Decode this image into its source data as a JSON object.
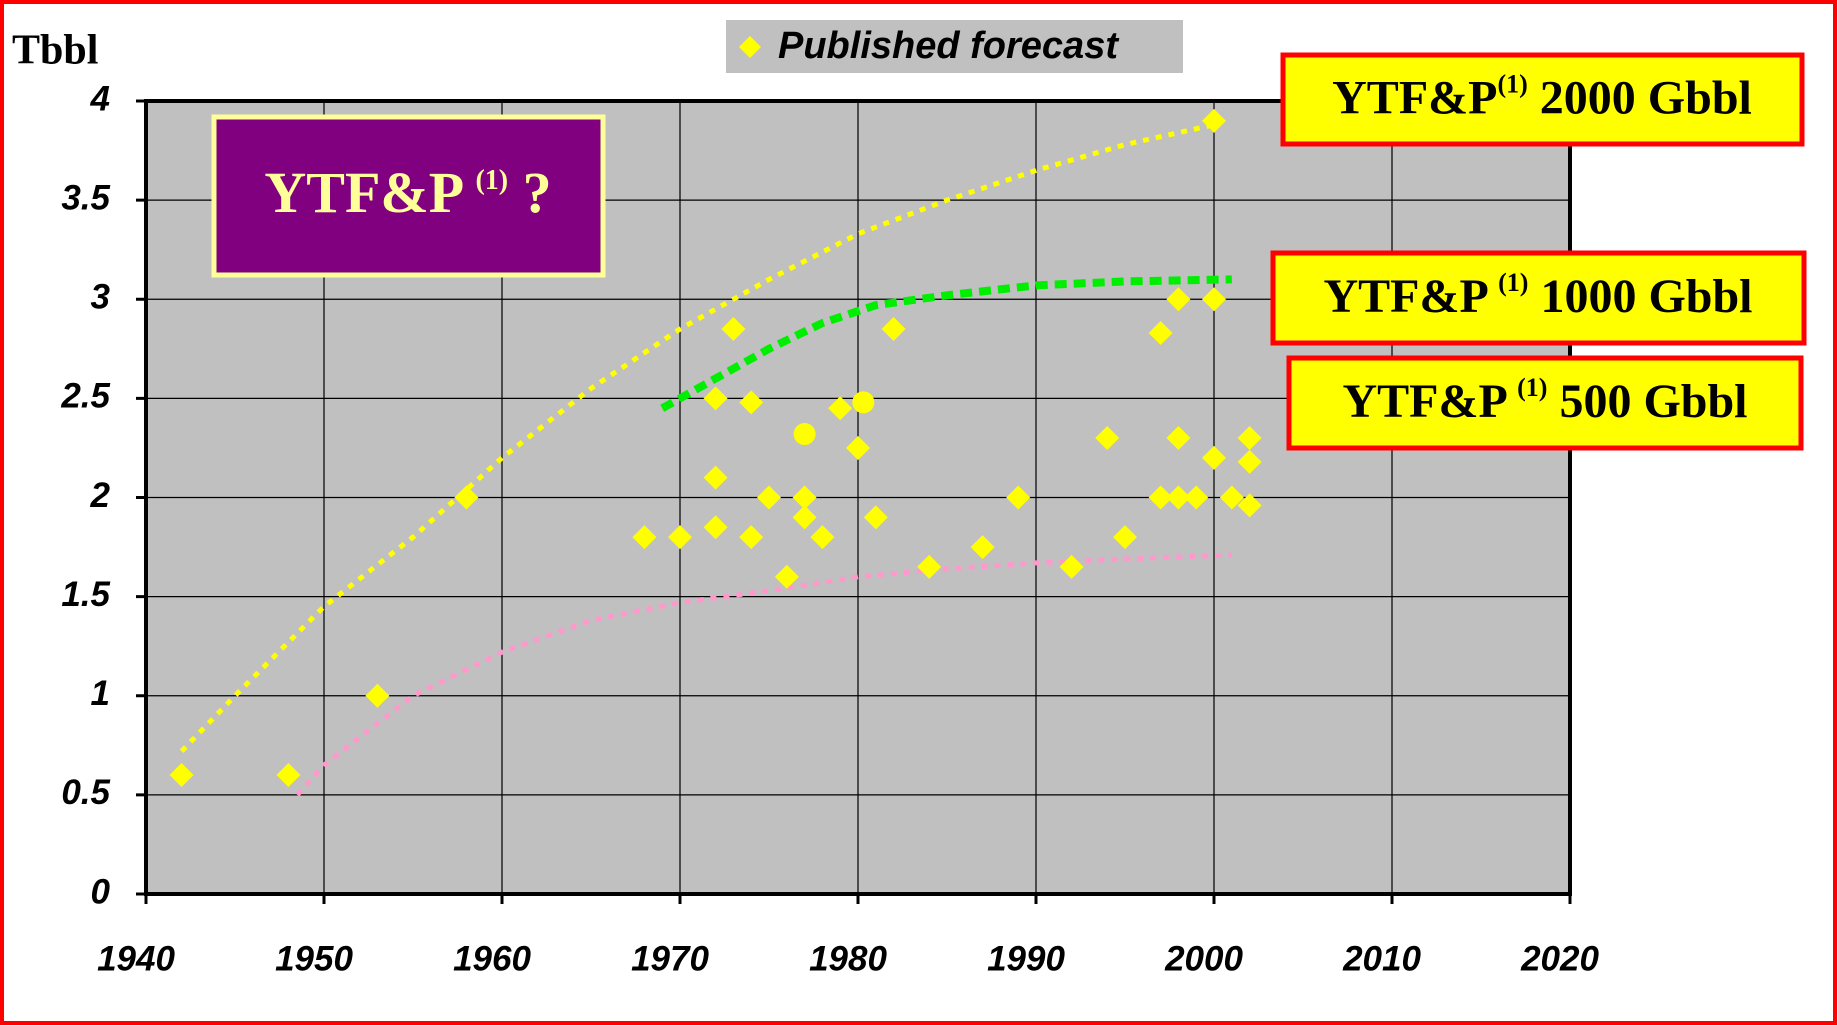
{
  "chart_data": {
    "type": "scatter",
    "y_label": "Tbbl",
    "xlim": [
      1940,
      2020
    ],
    "xticks": [
      1940,
      1950,
      1960,
      1970,
      1980,
      1990,
      2000,
      2010,
      2020
    ],
    "ylim": [
      0,
      4
    ],
    "yticks": [
      0,
      0.5,
      1,
      1.5,
      2,
      2.5,
      3,
      3.5,
      4
    ],
    "grid": true,
    "plot_background": "#c0c0c0",
    "series": [
      {
        "name": "Published forecast",
        "color": "#ffff00",
        "x": [
          1942,
          1948,
          1953,
          1958,
          1968,
          1970,
          1972,
          1972,
          1972,
          1973,
          1974,
          1974,
          1975,
          1976,
          1977,
          1977,
          1977,
          1978,
          1979,
          1980,
          1980.3,
          1981,
          1982,
          1984,
          1987,
          1989,
          1992,
          1994,
          1995,
          1997,
          1997,
          1998,
          1998,
          1998,
          1999,
          2000,
          2000,
          2000,
          2001,
          2002,
          2002,
          2002
        ],
        "values": [
          0.6,
          0.6,
          1.0,
          2.0,
          1.8,
          1.8,
          2.5,
          2.1,
          1.85,
          2.85,
          2.48,
          1.8,
          2.0,
          1.6,
          2.0,
          1.9,
          2.32,
          1.8,
          2.45,
          2.25,
          2.48,
          1.9,
          2.85,
          1.65,
          1.75,
          2.0,
          1.65,
          2.3,
          1.8,
          2.83,
          2.0,
          3.0,
          2.3,
          2.0,
          2.0,
          3.9,
          3.0,
          2.2,
          2.0,
          2.3,
          2.18,
          1.96
        ],
        "markers": [
          "diamond",
          "diamond",
          "diamond",
          "diamond",
          "diamond",
          "diamond",
          "diamond",
          "diamond",
          "diamond",
          "diamond",
          "diamond",
          "diamond",
          "diamond",
          "diamond",
          "diamond",
          "diamond",
          "circle",
          "diamond",
          "diamond",
          "diamond",
          "circle",
          "diamond",
          "diamond",
          "diamond",
          "diamond",
          "diamond",
          "diamond",
          "diamond",
          "diamond",
          "diamond",
          "diamond",
          "diamond",
          "diamond",
          "diamond",
          "diamond",
          "diamond",
          "diamond",
          "diamond",
          "diamond",
          "diamond",
          "diamond",
          "diamond"
        ]
      }
    ],
    "curves": [
      {
        "color": "#ffff00",
        "x": [
          1942,
          1945,
          1950,
          1955,
          1960,
          1965,
          1970,
          1975,
          1980,
          1985,
          1990,
          1995,
          2000
        ],
        "values": [
          0.72,
          1.0,
          1.45,
          1.8,
          2.2,
          2.55,
          2.85,
          3.1,
          3.33,
          3.5,
          3.65,
          3.78,
          3.88
        ]
      },
      {
        "color": "#00ee00",
        "x": [
          1969,
          1972,
          1975,
          1978,
          1981,
          1985,
          1990,
          1995,
          2001
        ],
        "values": [
          2.45,
          2.6,
          2.75,
          2.88,
          2.97,
          3.02,
          3.07,
          3.09,
          3.1
        ]
      },
      {
        "color": "#ff99cc",
        "x": [
          1948.5,
          1950,
          1955,
          1960,
          1965,
          1970,
          1975,
          1980,
          1985,
          1990,
          1995,
          2001
        ],
        "values": [
          0.5,
          0.65,
          1.0,
          1.22,
          1.38,
          1.47,
          1.53,
          1.6,
          1.64,
          1.67,
          1.69,
          1.71
        ]
      }
    ],
    "annotations": [
      {
        "main": "YTF&P ",
        "sup": "(1)",
        "rest": " ?"
      },
      {
        "main": "YTF&P",
        "sup": "(1)",
        "rest": " 2000 Gbbl"
      },
      {
        "main": "YTF&P ",
        "sup": "(1)",
        "rest": " 1000 Gbbl"
      },
      {
        "main": "YTF&P ",
        "sup": "(1)",
        "rest": " 500 Gbbl"
      }
    ]
  }
}
